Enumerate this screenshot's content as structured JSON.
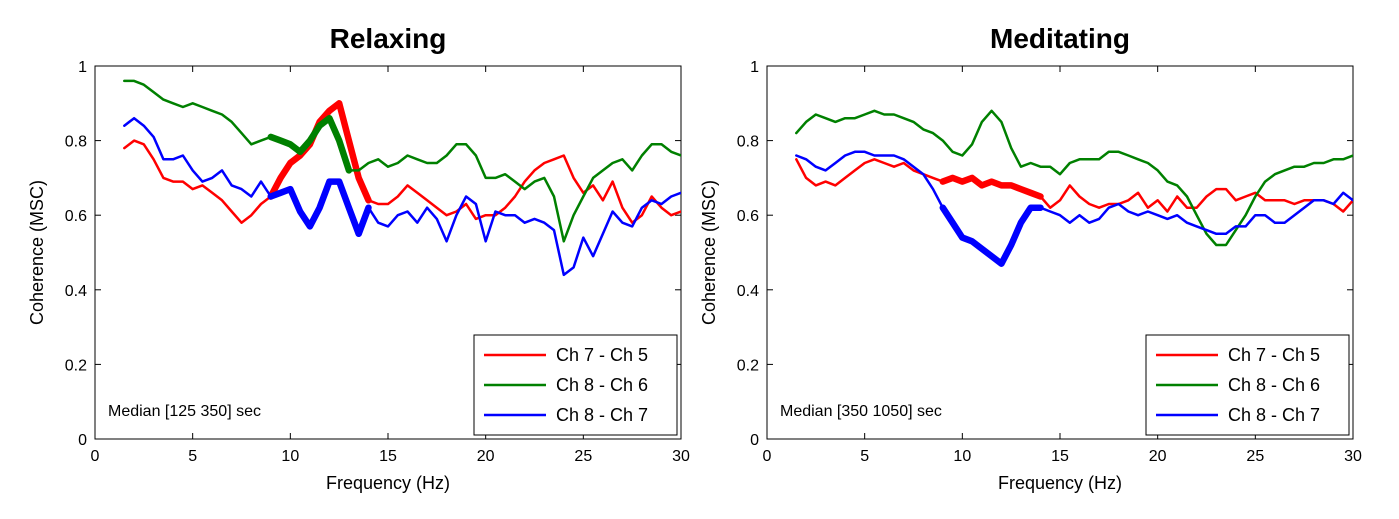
{
  "chart_data": [
    {
      "type": "line",
      "title": "Relaxing",
      "xlabel": "Frequency (Hz)",
      "ylabel": "Coherence (MSC)",
      "xlim": [
        0,
        30
      ],
      "ylim": [
        0,
        1
      ],
      "xticks": [
        0,
        5,
        10,
        15,
        20,
        25,
        30
      ],
      "yticks": [
        0,
        0.2,
        0.4,
        0.6,
        0.8,
        1
      ],
      "xtick_labels": [
        "0",
        "5",
        "10",
        "15",
        "20",
        "25",
        "30"
      ],
      "ytick_labels": [
        "0",
        "0.2",
        "0.4",
        "0.6",
        "0.8",
        "1"
      ],
      "grid": false,
      "legend": "bottom-right",
      "annotation": "Median [125 350] sec",
      "series": [
        {
          "name": "Ch 7 - Ch 5",
          "color": "#ff0000",
          "x": [
            1.5,
            2,
            2.5,
            3,
            3.5,
            4,
            4.5,
            5,
            5.5,
            6,
            6.5,
            7,
            7.5,
            8,
            8.5,
            9,
            9.5,
            10,
            10.5,
            11,
            11.5,
            12,
            12.5,
            13,
            13.5,
            14,
            14.5,
            15,
            15.5,
            16,
            16.5,
            17,
            17.5,
            18,
            18.5,
            19,
            19.5,
            20,
            20.5,
            21,
            21.5,
            22,
            22.5,
            23,
            23.5,
            24,
            24.5,
            25,
            25.5,
            26,
            26.5,
            27,
            27.5,
            28,
            28.5,
            29,
            29.5,
            30
          ],
          "y": [
            0.78,
            0.8,
            0.79,
            0.75,
            0.7,
            0.69,
            0.69,
            0.67,
            0.68,
            0.66,
            0.64,
            0.61,
            0.58,
            0.6,
            0.63,
            0.65,
            0.7,
            0.74,
            0.76,
            0.79,
            0.85,
            0.88,
            0.9,
            0.8,
            0.7,
            0.64,
            0.63,
            0.63,
            0.65,
            0.68,
            0.66,
            0.64,
            0.62,
            0.6,
            0.61,
            0.63,
            0.59,
            0.6,
            0.6,
            0.62,
            0.65,
            0.69,
            0.72,
            0.74,
            0.75,
            0.76,
            0.7,
            0.66,
            0.68,
            0.64,
            0.69,
            0.62,
            0.58,
            0.6,
            0.65,
            0.62,
            0.6,
            0.61
          ],
          "bold_range": [
            9,
            14
          ]
        },
        {
          "name": "Ch 8 - Ch 6",
          "color": "#008000",
          "x": [
            1.5,
            2,
            2.5,
            3,
            3.5,
            4,
            4.5,
            5,
            5.5,
            6,
            6.5,
            7,
            7.5,
            8,
            8.5,
            9,
            9.5,
            10,
            10.5,
            11,
            11.5,
            12,
            12.5,
            13,
            13.5,
            14,
            14.5,
            15,
            15.5,
            16,
            16.5,
            17,
            17.5,
            18,
            18.5,
            19,
            19.5,
            20,
            20.5,
            21,
            21.5,
            22,
            22.5,
            23,
            23.5,
            24,
            24.5,
            25,
            25.5,
            26,
            26.5,
            27,
            27.5,
            28,
            28.5,
            29,
            29.5,
            30
          ],
          "y": [
            0.96,
            0.96,
            0.95,
            0.93,
            0.91,
            0.9,
            0.89,
            0.9,
            0.89,
            0.88,
            0.87,
            0.85,
            0.82,
            0.79,
            0.8,
            0.81,
            0.8,
            0.79,
            0.77,
            0.8,
            0.84,
            0.86,
            0.8,
            0.72,
            0.72,
            0.74,
            0.75,
            0.73,
            0.74,
            0.76,
            0.75,
            0.74,
            0.74,
            0.76,
            0.79,
            0.79,
            0.76,
            0.7,
            0.7,
            0.71,
            0.69,
            0.67,
            0.69,
            0.7,
            0.65,
            0.53,
            0.6,
            0.65,
            0.7,
            0.72,
            0.74,
            0.75,
            0.72,
            0.76,
            0.79,
            0.79,
            0.77,
            0.76
          ],
          "bold_range": [
            9,
            13
          ]
        },
        {
          "name": "Ch 8 - Ch 7",
          "color": "#0000ff",
          "x": [
            1.5,
            2,
            2.5,
            3,
            3.5,
            4,
            4.5,
            5,
            5.5,
            6,
            6.5,
            7,
            7.5,
            8,
            8.5,
            9,
            9.5,
            10,
            10.5,
            11,
            11.5,
            12,
            12.5,
            13,
            13.5,
            14,
            14.5,
            15,
            15.5,
            16,
            16.5,
            17,
            17.5,
            18,
            18.5,
            19,
            19.5,
            20,
            20.5,
            21,
            21.5,
            22,
            22.5,
            23,
            23.5,
            24,
            24.5,
            25,
            25.5,
            26,
            26.5,
            27,
            27.5,
            28,
            28.5,
            29,
            29.5,
            30
          ],
          "y": [
            0.84,
            0.86,
            0.84,
            0.81,
            0.75,
            0.75,
            0.76,
            0.72,
            0.69,
            0.7,
            0.72,
            0.68,
            0.67,
            0.65,
            0.69,
            0.65,
            0.66,
            0.67,
            0.61,
            0.57,
            0.62,
            0.69,
            0.69,
            0.62,
            0.55,
            0.62,
            0.58,
            0.57,
            0.6,
            0.61,
            0.58,
            0.62,
            0.59,
            0.53,
            0.6,
            0.65,
            0.63,
            0.53,
            0.61,
            0.6,
            0.6,
            0.58,
            0.59,
            0.58,
            0.56,
            0.44,
            0.46,
            0.54,
            0.49,
            0.55,
            0.61,
            0.58,
            0.57,
            0.62,
            0.64,
            0.63,
            0.65,
            0.66
          ],
          "bold_range": [
            9,
            14
          ]
        }
      ]
    },
    {
      "type": "line",
      "title": "Meditating",
      "xlabel": "Frequency (Hz)",
      "ylabel": "Coherence (MSC)",
      "xlim": [
        0,
        30
      ],
      "ylim": [
        0,
        1
      ],
      "xticks": [
        0,
        5,
        10,
        15,
        20,
        25,
        30
      ],
      "yticks": [
        0,
        0.2,
        0.4,
        0.6,
        0.8,
        1
      ],
      "xtick_labels": [
        "0",
        "5",
        "10",
        "15",
        "20",
        "25",
        "30"
      ],
      "ytick_labels": [
        "0",
        "0.2",
        "0.4",
        "0.6",
        "0.8",
        "1"
      ],
      "grid": false,
      "legend": "bottom-right",
      "annotation": "Median [350 1050] sec",
      "series": [
        {
          "name": "Ch 7 - Ch 5",
          "color": "#ff0000",
          "x": [
            1.5,
            2,
            2.5,
            3,
            3.5,
            4,
            4.5,
            5,
            5.5,
            6,
            6.5,
            7,
            7.5,
            8,
            8.5,
            9,
            9.5,
            10,
            10.5,
            11,
            11.5,
            12,
            12.5,
            13,
            13.5,
            14,
            14.5,
            15,
            15.5,
            16,
            16.5,
            17,
            17.5,
            18,
            18.5,
            19,
            19.5,
            20,
            20.5,
            21,
            21.5,
            22,
            22.5,
            23,
            23.5,
            24,
            24.5,
            25,
            25.5,
            26,
            26.5,
            27,
            27.5,
            28,
            28.5,
            29,
            29.5,
            30
          ],
          "y": [
            0.75,
            0.7,
            0.68,
            0.69,
            0.68,
            0.7,
            0.72,
            0.74,
            0.75,
            0.74,
            0.73,
            0.74,
            0.72,
            0.71,
            0.7,
            0.69,
            0.7,
            0.69,
            0.7,
            0.68,
            0.69,
            0.68,
            0.68,
            0.67,
            0.66,
            0.65,
            0.62,
            0.64,
            0.68,
            0.65,
            0.63,
            0.62,
            0.63,
            0.63,
            0.64,
            0.66,
            0.62,
            0.64,
            0.61,
            0.65,
            0.62,
            0.62,
            0.65,
            0.67,
            0.67,
            0.64,
            0.65,
            0.66,
            0.64,
            0.64,
            0.64,
            0.63,
            0.64,
            0.64,
            0.64,
            0.63,
            0.61,
            0.64
          ],
          "bold_range": [
            9,
            14
          ]
        },
        {
          "name": "Ch 8 - Ch 6",
          "color": "#008000",
          "x": [
            1.5,
            2,
            2.5,
            3,
            3.5,
            4,
            4.5,
            5,
            5.5,
            6,
            6.5,
            7,
            7.5,
            8,
            8.5,
            9,
            9.5,
            10,
            10.5,
            11,
            11.5,
            12,
            12.5,
            13,
            13.5,
            14,
            14.5,
            15,
            15.5,
            16,
            16.5,
            17,
            17.5,
            18,
            18.5,
            19,
            19.5,
            20,
            20.5,
            21,
            21.5,
            22,
            22.5,
            23,
            23.5,
            24,
            24.5,
            25,
            25.5,
            26,
            26.5,
            27,
            27.5,
            28,
            28.5,
            29,
            29.5,
            30
          ],
          "y": [
            0.82,
            0.85,
            0.87,
            0.86,
            0.85,
            0.86,
            0.86,
            0.87,
            0.88,
            0.87,
            0.87,
            0.86,
            0.85,
            0.83,
            0.82,
            0.8,
            0.77,
            0.76,
            0.79,
            0.85,
            0.88,
            0.85,
            0.78,
            0.73,
            0.74,
            0.73,
            0.73,
            0.71,
            0.74,
            0.75,
            0.75,
            0.75,
            0.77,
            0.77,
            0.76,
            0.75,
            0.74,
            0.72,
            0.69,
            0.68,
            0.65,
            0.6,
            0.55,
            0.52,
            0.52,
            0.56,
            0.6,
            0.65,
            0.69,
            0.71,
            0.72,
            0.73,
            0.73,
            0.74,
            0.74,
            0.75,
            0.75,
            0.76
          ],
          "bold_range": null
        },
        {
          "name": "Ch 8 - Ch 7",
          "color": "#0000ff",
          "x": [
            1.5,
            2,
            2.5,
            3,
            3.5,
            4,
            4.5,
            5,
            5.5,
            6,
            6.5,
            7,
            7.5,
            8,
            8.5,
            9,
            9.5,
            10,
            10.5,
            11,
            11.5,
            12,
            12.5,
            13,
            13.5,
            14,
            14.5,
            15,
            15.5,
            16,
            16.5,
            17,
            17.5,
            18,
            18.5,
            19,
            19.5,
            20,
            20.5,
            21,
            21.5,
            22,
            22.5,
            23,
            23.5,
            24,
            24.5,
            25,
            25.5,
            26,
            26.5,
            27,
            27.5,
            28,
            28.5,
            29,
            29.5,
            30
          ],
          "y": [
            0.76,
            0.75,
            0.73,
            0.72,
            0.74,
            0.76,
            0.77,
            0.77,
            0.76,
            0.76,
            0.76,
            0.75,
            0.73,
            0.71,
            0.67,
            0.62,
            0.58,
            0.54,
            0.53,
            0.51,
            0.49,
            0.47,
            0.52,
            0.58,
            0.62,
            0.62,
            0.61,
            0.6,
            0.58,
            0.6,
            0.58,
            0.59,
            0.62,
            0.63,
            0.61,
            0.6,
            0.61,
            0.6,
            0.59,
            0.6,
            0.58,
            0.57,
            0.56,
            0.55,
            0.55,
            0.57,
            0.57,
            0.6,
            0.6,
            0.58,
            0.58,
            0.6,
            0.62,
            0.64,
            0.64,
            0.63,
            0.66,
            0.64
          ],
          "bold_range": [
            8.7,
            14
          ]
        }
      ]
    }
  ]
}
